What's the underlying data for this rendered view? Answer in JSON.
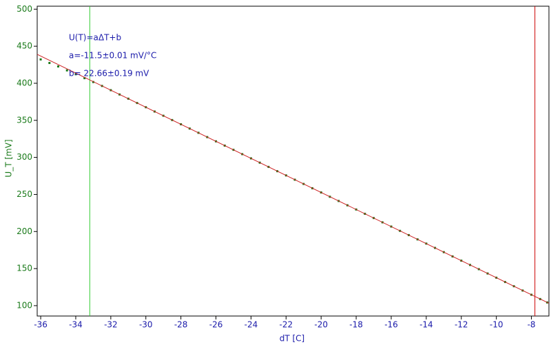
{
  "chart_data": {
    "type": "scatter",
    "xlabel": "dT [C]",
    "ylabel": "U_T [mV]",
    "annotations": [
      "U(T)=aΔT+b",
      "a=-11.5±0.01 mV/°C",
      "b= 22.66±0.19 mV"
    ],
    "xlim": [
      -36.2,
      -7.0
    ],
    "ylim": [
      86,
      504
    ],
    "xticks": [
      -36,
      -34,
      -32,
      -30,
      -28,
      -26,
      -24,
      -22,
      -20,
      -18,
      -16,
      -14,
      -12,
      -10,
      -8
    ],
    "yticks": [
      100,
      150,
      200,
      250,
      300,
      350,
      400,
      450,
      500
    ],
    "series": [
      {
        "color": "#1a7a1a",
        "x": [
          -36,
          -35.5,
          -35,
          -34.5,
          -34,
          -33.5,
          -33,
          -32.5,
          -32,
          -31.5,
          -31,
          -30.5,
          -30,
          -29.5,
          -29,
          -28.5,
          -28,
          -27.5,
          -27,
          -26.5,
          -26,
          -25.5,
          -25,
          -24.5,
          -24,
          -23.5,
          -23,
          -22.5,
          -22,
          -21.5,
          -21,
          -20.5,
          -20,
          -19.5,
          -19,
          -18.5,
          -18,
          -17.5,
          -17,
          -16.5,
          -16,
          -15.5,
          -15,
          -14.5,
          -14,
          -13.5,
          -13,
          -12.5,
          -12,
          -11.5,
          -11,
          -10.5,
          -10,
          -9.5,
          -9,
          -8.5,
          -8,
          -7.5,
          -7.1
        ],
        "values": [
          432.2,
          427.4,
          422.7,
          417.4,
          412.2,
          406.9,
          401.7,
          396.4,
          390.7,
          384.9,
          379.2,
          373.4,
          367.7,
          361.9,
          356.2,
          350.4,
          344.7,
          338.9,
          333.2,
          327.4,
          321.7,
          315.9,
          310.2,
          304.4,
          298.7,
          292.9,
          287.2,
          281.4,
          275.7,
          269.9,
          264.2,
          258.4,
          252.7,
          246.9,
          241.2,
          235.4,
          229.7,
          223.9,
          218.2,
          212.4,
          206.7,
          200.9,
          195.2,
          189.4,
          183.7,
          177.9,
          172.2,
          166.4,
          160.7,
          154.9,
          149.2,
          143.4,
          137.7,
          131.9,
          126.2,
          120.4,
          114.7,
          108.9,
          104.3
        ]
      },
      {
        "color": "#cc2222",
        "x": [
          -36.2,
          -7.0
        ],
        "values": [
          439.0,
          103.2
        ]
      }
    ],
    "cursors": [
      {
        "x": -33.2,
        "color": "#33cc33"
      },
      {
        "x": -7.8,
        "color": "#cc0000"
      }
    ]
  }
}
